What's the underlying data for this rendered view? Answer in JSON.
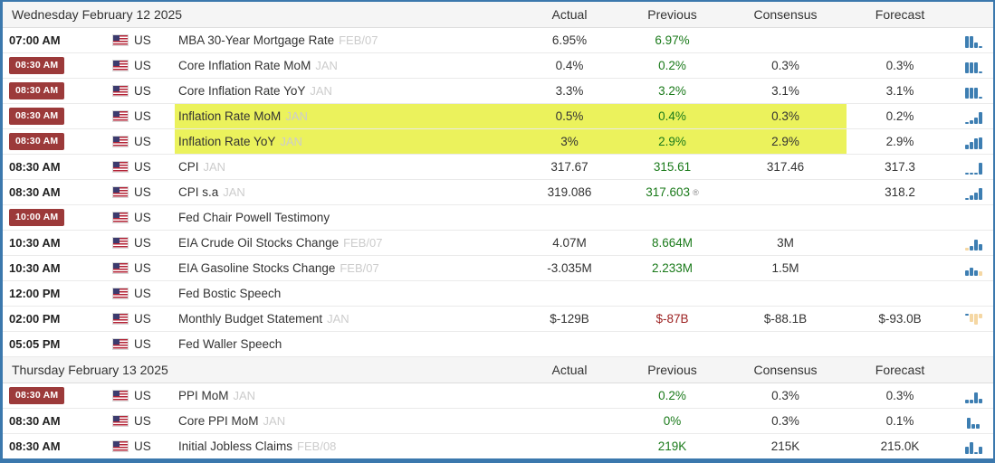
{
  "columns": {
    "actual": "Actual",
    "previous": "Previous",
    "consensus": "Consensus",
    "forecast": "Forecast"
  },
  "colors": {
    "border_blue": "#3b78ad",
    "badge_red": "#9c3a3a",
    "previous_green": "#1a7a1a",
    "previous_red": "#9c2121",
    "highlight_yellow": "#ebf25c",
    "spark_blue": "#3d7eb2",
    "spark_tan": "#f5d7a3"
  },
  "sections": [
    {
      "date": "Wednesday February 12 2025",
      "rows": [
        {
          "time": "07:00 AM",
          "badge": false,
          "country": "US",
          "event": "MBA 30-Year Mortgage Rate",
          "period": "FEB/07",
          "actual": "6.95%",
          "previous": "6.97%",
          "previous_color": "green",
          "previous_note": "",
          "consensus": "",
          "forecast": "",
          "highlight": false,
          "spark": {
            "align": "up",
            "bars": [
              [
                13,
                "b"
              ],
              [
                13,
                "b"
              ],
              [
                6,
                "b"
              ],
              [
                2,
                "b"
              ]
            ]
          }
        },
        {
          "time": "08:30 AM",
          "badge": true,
          "country": "US",
          "event": "Core Inflation Rate MoM",
          "period": "JAN",
          "actual": "0.4%",
          "previous": "0.2%",
          "previous_color": "green",
          "previous_note": "",
          "consensus": "0.3%",
          "forecast": "0.3%",
          "highlight": false,
          "spark": {
            "align": "up",
            "bars": [
              [
                12,
                "b"
              ],
              [
                12,
                "b"
              ],
              [
                12,
                "b"
              ],
              [
                2,
                "b"
              ]
            ]
          }
        },
        {
          "time": "08:30 AM",
          "badge": true,
          "country": "US",
          "event": "Core Inflation Rate YoY",
          "period": "JAN",
          "actual": "3.3%",
          "previous": "3.2%",
          "previous_color": "green",
          "previous_note": "",
          "consensus": "3.1%",
          "forecast": "3.1%",
          "highlight": false,
          "spark": {
            "align": "up",
            "bars": [
              [
                12,
                "b"
              ],
              [
                12,
                "b"
              ],
              [
                12,
                "b"
              ],
              [
                2,
                "b"
              ]
            ]
          }
        },
        {
          "time": "08:30 AM",
          "badge": true,
          "country": "US",
          "event": "Inflation Rate MoM",
          "period": "JAN",
          "actual": "0.5%",
          "previous": "0.4%",
          "previous_color": "green",
          "previous_note": "",
          "consensus": "0.3%",
          "forecast": "0.2%",
          "highlight": true,
          "spark": {
            "align": "up",
            "bars": [
              [
                2,
                "b"
              ],
              [
                4,
                "b"
              ],
              [
                7,
                "b"
              ],
              [
                13,
                "b"
              ]
            ]
          }
        },
        {
          "time": "08:30 AM",
          "badge": true,
          "country": "US",
          "event": "Inflation Rate YoY",
          "period": "JAN",
          "actual": "3%",
          "previous": "2.9%",
          "previous_color": "green",
          "previous_note": "",
          "consensus": "2.9%",
          "forecast": "2.9%",
          "highlight": true,
          "spark": {
            "align": "up",
            "bars": [
              [
                5,
                "b"
              ],
              [
                8,
                "b"
              ],
              [
                12,
                "b"
              ],
              [
                13,
                "b"
              ]
            ]
          }
        },
        {
          "time": "08:30 AM",
          "badge": false,
          "country": "US",
          "event": "CPI",
          "period": "JAN",
          "actual": "317.67",
          "previous": "315.61",
          "previous_color": "green",
          "previous_note": "",
          "consensus": "317.46",
          "forecast": "317.3",
          "highlight": false,
          "spark": {
            "align": "up",
            "bars": [
              [
                2,
                "b"
              ],
              [
                2,
                "b"
              ],
              [
                2,
                "b"
              ],
              [
                13,
                "b"
              ]
            ]
          }
        },
        {
          "time": "08:30 AM",
          "badge": false,
          "country": "US",
          "event": "CPI s.a",
          "period": "JAN",
          "actual": "319.086",
          "previous": "317.603",
          "previous_color": "green",
          "previous_note": "®",
          "consensus": "",
          "forecast": "318.2",
          "highlight": false,
          "spark": {
            "align": "up",
            "bars": [
              [
                2,
                "b"
              ],
              [
                5,
                "b"
              ],
              [
                8,
                "b"
              ],
              [
                13,
                "b"
              ]
            ]
          }
        },
        {
          "time": "10:00 AM",
          "badge": true,
          "country": "US",
          "event": "Fed Chair Powell Testimony",
          "period": "",
          "actual": "",
          "previous": "",
          "previous_color": "",
          "previous_note": "",
          "consensus": "",
          "forecast": "",
          "highlight": false,
          "spark": null
        },
        {
          "time": "10:30 AM",
          "badge": false,
          "country": "US",
          "event": "EIA Crude Oil Stocks Change",
          "period": "FEB/07",
          "actual": "4.07M",
          "previous": "8.664M",
          "previous_color": "green",
          "previous_note": "",
          "consensus": "3M",
          "forecast": "",
          "highlight": false,
          "spark": {
            "align": "up",
            "bars": [
              [
                3,
                "t"
              ],
              [
                5,
                "b"
              ],
              [
                12,
                "b"
              ],
              [
                7,
                "b"
              ]
            ]
          }
        },
        {
          "time": "10:30 AM",
          "badge": false,
          "country": "US",
          "event": "EIA Gasoline Stocks Change",
          "period": "FEB/07",
          "actual": "-3.035M",
          "previous": "2.233M",
          "previous_color": "green",
          "previous_note": "",
          "consensus": "1.5M",
          "forecast": "",
          "highlight": false,
          "spark": {
            "align": "up",
            "bars": [
              [
                6,
                "b"
              ],
              [
                9,
                "b"
              ],
              [
                6,
                "b"
              ],
              [
                5,
                "t"
              ]
            ]
          }
        },
        {
          "time": "12:00 PM",
          "badge": false,
          "country": "US",
          "event": "Fed Bostic Speech",
          "period": "",
          "actual": "",
          "previous": "",
          "previous_color": "",
          "previous_note": "",
          "consensus": "",
          "forecast": "",
          "highlight": false,
          "spark": null
        },
        {
          "time": "02:00 PM",
          "badge": false,
          "country": "US",
          "event": "Monthly Budget Statement",
          "period": "JAN",
          "actual": "$-129B",
          "previous": "$-87B",
          "previous_color": "red",
          "previous_note": "",
          "consensus": "$-88.1B",
          "forecast": "$-93.0B",
          "highlight": false,
          "spark": {
            "align": "down",
            "bars": [
              [
                2,
                "b"
              ],
              [
                9,
                "t"
              ],
              [
                12,
                "t"
              ],
              [
                5,
                "t"
              ]
            ]
          }
        },
        {
          "time": "05:05 PM",
          "badge": false,
          "country": "US",
          "event": "Fed Waller Speech",
          "period": "",
          "actual": "",
          "previous": "",
          "previous_color": "",
          "previous_note": "",
          "consensus": "",
          "forecast": "",
          "highlight": false,
          "spark": null
        }
      ]
    },
    {
      "date": "Thursday February 13 2025",
      "rows": [
        {
          "time": "08:30 AM",
          "badge": true,
          "country": "US",
          "event": "PPI MoM",
          "period": "JAN",
          "actual": "",
          "previous": "0.2%",
          "previous_color": "green",
          "previous_note": "",
          "consensus": "0.3%",
          "forecast": "0.3%",
          "highlight": false,
          "spark": {
            "align": "up",
            "bars": [
              [
                4,
                "b"
              ],
              [
                4,
                "b"
              ],
              [
                12,
                "b"
              ],
              [
                5,
                "b"
              ]
            ]
          }
        },
        {
          "time": "08:30 AM",
          "badge": false,
          "country": "US",
          "event": "Core PPI MoM",
          "period": "JAN",
          "actual": "",
          "previous": "0%",
          "previous_color": "green",
          "previous_note": "",
          "consensus": "0.3%",
          "forecast": "0.1%",
          "highlight": false,
          "spark": {
            "align": "up",
            "bars": [
              [
                12,
                "b"
              ],
              [
                5,
                "b"
              ],
              [
                5,
                "b"
              ]
            ]
          }
        },
        {
          "time": "08:30 AM",
          "badge": false,
          "country": "US",
          "event": "Initial Jobless Claims",
          "period": "FEB/08",
          "actual": "",
          "previous": "219K",
          "previous_color": "green",
          "previous_note": "",
          "consensus": "215K",
          "forecast": "215.0K",
          "highlight": false,
          "spark": {
            "align": "up",
            "bars": [
              [
                8,
                "b"
              ],
              [
                13,
                "b"
              ],
              [
                2,
                "b"
              ],
              [
                8,
                "b"
              ]
            ]
          }
        }
      ]
    }
  ]
}
